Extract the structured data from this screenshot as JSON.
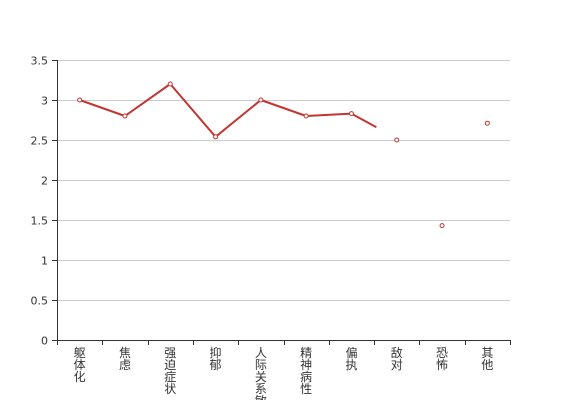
{
  "chart_data": {
    "type": "line",
    "categories": [
      "躯体化",
      "焦虑",
      "强迫症状",
      "抑郁",
      "人际关系敏感",
      "精神病性",
      "偏执",
      "敌对",
      "恐怖",
      "其他"
    ],
    "series": [
      {
        "values": [
          3.0,
          2.8,
          3.2,
          2.54,
          3.0,
          2.8,
          2.83,
          2.5,
          1.43,
          2.71
        ],
        "line_segments": [
          [
            0,
            6
          ]
        ],
        "tail_toward": 2.66
      }
    ],
    "ylim": [
      0,
      3.5
    ],
    "yticks": [
      0,
      0.5,
      1,
      1.5,
      2,
      2.5,
      3,
      3.5
    ],
    "ytick_labels": [
      "0",
      "0.5",
      "1",
      "1.5",
      "2",
      "2.5",
      "3",
      "3.5"
    ],
    "grid": true,
    "title": "",
    "xlabel": "",
    "ylabel": "",
    "colors": {
      "line": "#c23531",
      "grid": "#cccccc",
      "axis": "#333333",
      "point_fill": "#ffffff"
    }
  }
}
